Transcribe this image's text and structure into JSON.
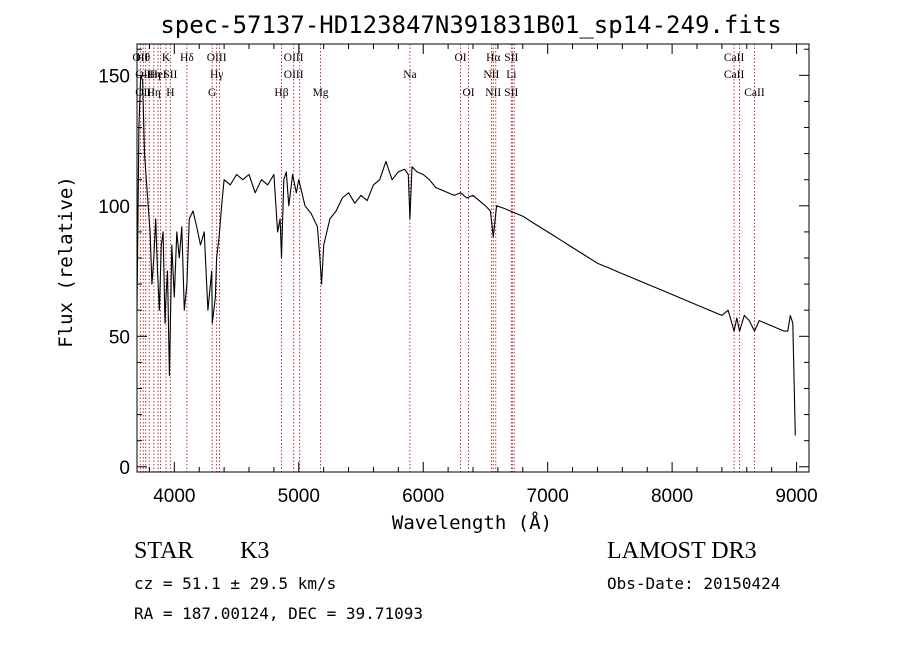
{
  "chart_data": {
    "type": "line",
    "title": "spec-57137-HD123847N391831B01_sp14-249.fits",
    "xlabel": "Wavelength (Å)",
    "ylabel": "Flux (relative)",
    "xlim": [
      3700,
      9100
    ],
    "ylim": [
      -2,
      162
    ],
    "xticks": [
      4000,
      5000,
      6000,
      7000,
      8000,
      9000
    ],
    "xtick_labels": [
      "4000",
      "5000",
      "6000",
      "7000",
      "8000",
      "9000"
    ],
    "yticks": [
      0,
      50,
      100,
      150
    ],
    "ytick_labels": [
      "0",
      "50",
      "100",
      "150"
    ],
    "grid": false,
    "line_color": "#000000",
    "marker_color": "#b22222",
    "series": [
      {
        "x": [
          3700,
          3715,
          3730,
          3745,
          3760,
          3775,
          3790,
          3805,
          3820,
          3835,
          3850,
          3865,
          3880,
          3895,
          3910,
          3925,
          3933,
          3945,
          3960,
          3968,
          3980,
          4000,
          4020,
          4040,
          4060,
          4080,
          4101,
          4120,
          4150,
          4180,
          4210,
          4240,
          4270,
          4300,
          4305,
          4330,
          4340,
          4360,
          4380,
          4400,
          4450,
          4500,
          4550,
          4600,
          4650,
          4700,
          4750,
          4800,
          4830,
          4850,
          4861,
          4880,
          4900,
          4920,
          4950,
          4980,
          5000,
          5050,
          5100,
          5150,
          5170,
          5183,
          5200,
          5250,
          5300,
          5350,
          5400,
          5450,
          5500,
          5550,
          5600,
          5650,
          5700,
          5750,
          5800,
          5850,
          5880,
          5893,
          5910,
          5950,
          6000,
          6050,
          6100,
          6150,
          6200,
          6250,
          6300,
          6350,
          6400,
          6450,
          6500,
          6540,
          6563,
          6590,
          6650,
          6700,
          6750,
          6800,
          6900,
          7000,
          7100,
          7200,
          7300,
          7400,
          7500,
          7600,
          7700,
          7800,
          7900,
          8000,
          8100,
          8200,
          8300,
          8400,
          8450,
          8498,
          8520,
          8542,
          8580,
          8620,
          8662,
          8700,
          8750,
          8800,
          8850,
          8900,
          8930,
          8950,
          8970,
          8990
        ],
        "y": [
          60,
          130,
          150,
          148,
          120,
          110,
          100,
          90,
          70,
          80,
          95,
          75,
          60,
          85,
          90,
          55,
          65,
          75,
          35,
          55,
          85,
          65,
          90,
          80,
          92,
          60,
          70,
          95,
          98,
          92,
          85,
          90,
          60,
          75,
          55,
          65,
          80,
          88,
          100,
          110,
          108,
          112,
          110,
          112,
          105,
          110,
          108,
          112,
          90,
          95,
          80,
          110,
          113,
          100,
          112,
          105,
          110,
          100,
          97,
          92,
          80,
          70,
          85,
          95,
          98,
          103,
          105,
          101,
          104,
          102,
          108,
          110,
          117,
          110,
          113,
          114,
          112,
          95,
          115,
          113,
          112,
          110,
          107,
          106,
          105,
          104,
          105,
          103,
          104,
          102,
          100,
          98,
          88,
          100,
          99,
          98,
          97,
          96,
          93,
          90,
          87,
          84,
          81,
          78,
          76,
          74,
          72,
          70,
          68,
          66,
          64,
          62,
          60,
          58,
          60,
          52,
          57,
          52,
          58,
          56,
          52,
          56,
          55,
          54,
          53,
          52,
          52,
          58,
          55,
          12
        ]
      }
    ],
    "lines": [
      {
        "x": 3727,
        "top": "OII",
        "mid": "",
        "low": ""
      },
      {
        "x": 3750,
        "top": "Hθ",
        "mid": "OII",
        "low": "OII"
      },
      {
        "x": 3770,
        "top": "",
        "mid": "",
        "low": ""
      },
      {
        "x": 3798,
        "top": "",
        "mid": "",
        "low": ""
      },
      {
        "x": 3835,
        "top": "",
        "mid": "Hη",
        "low": "Hη"
      },
      {
        "x": 3869,
        "top": "",
        "mid": "HeI",
        "low": ""
      },
      {
        "x": 3889,
        "top": "",
        "mid": "",
        "low": ""
      },
      {
        "x": 3933,
        "top": "K",
        "mid": "",
        "low": ""
      },
      {
        "x": 3968,
        "top": "",
        "mid": "SII",
        "low": "H"
      },
      {
        "x": 4101,
        "top": "Hδ",
        "mid": "",
        "low": ""
      },
      {
        "x": 4304,
        "top": "",
        "mid": "",
        "low": "G"
      },
      {
        "x": 4340,
        "top": "OIII",
        "mid": "Hγ",
        "low": ""
      },
      {
        "x": 4363,
        "top": "",
        "mid": "",
        "low": ""
      },
      {
        "x": 4861,
        "top": "",
        "mid": "",
        "low": "Hβ"
      },
      {
        "x": 4959,
        "top": "OIII",
        "mid": "OIII",
        "low": ""
      },
      {
        "x": 5007,
        "top": "",
        "mid": "",
        "low": ""
      },
      {
        "x": 5175,
        "top": "",
        "mid": "",
        "low": "Mg"
      },
      {
        "x": 5893,
        "top": "",
        "mid": "Na",
        "low": ""
      },
      {
        "x": 6300,
        "top": "OI",
        "mid": "",
        "low": ""
      },
      {
        "x": 6364,
        "top": "",
        "mid": "",
        "low": "OI"
      },
      {
        "x": 6548,
        "top": "",
        "mid": "NII",
        "low": ""
      },
      {
        "x": 6563,
        "top": "Hα",
        "mid": "",
        "low": "NII"
      },
      {
        "x": 6583,
        "top": "",
        "mid": "",
        "low": ""
      },
      {
        "x": 6708,
        "top": "SII",
        "mid": "Li",
        "low": "SII"
      },
      {
        "x": 6716,
        "top": "",
        "mid": "",
        "low": ""
      },
      {
        "x": 6731,
        "top": "",
        "mid": "",
        "low": ""
      },
      {
        "x": 8498,
        "top": "CaII",
        "mid": "CaII",
        "low": ""
      },
      {
        "x": 8542,
        "top": "",
        "mid": "",
        "low": ""
      },
      {
        "x": 8662,
        "top": "",
        "mid": "",
        "low": "CaII"
      }
    ]
  },
  "info": {
    "class_label": "STAR",
    "subclass": "K3",
    "survey": "LAMOST DR3",
    "cz": "cz = 51.1 ± 29.5 km/s",
    "obs_date": "Obs-Date: 20150424",
    "radec": "RA = 187.00124, DEC =  39.71093"
  }
}
